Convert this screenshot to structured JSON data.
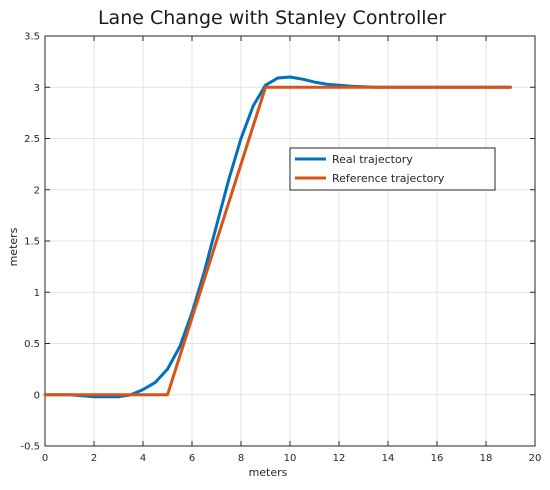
{
  "chart_data": {
    "type": "line",
    "title": "Lane Change with Stanley Controller",
    "xlabel": "meters",
    "ylabel": "meters",
    "xlim": [
      0,
      20
    ],
    "ylim": [
      -0.5,
      3.5
    ],
    "xticks": [
      0,
      2,
      4,
      6,
      8,
      10,
      12,
      14,
      16,
      18,
      20
    ],
    "xtick_labels": [
      "0",
      "2",
      "4",
      "6",
      "8",
      "10",
      "12",
      "14",
      "16",
      "18",
      "20"
    ],
    "yticks": [
      -0.5,
      0,
      0.5,
      1,
      1.5,
      2,
      2.5,
      3,
      3.5
    ],
    "ytick_labels": [
      "-0.5",
      "0",
      "0.5",
      "1",
      "1.5",
      "2",
      "2.5",
      "3",
      "3.5"
    ],
    "grid": true,
    "legend_position": "upper-right",
    "series": [
      {
        "name": "Real trajectory",
        "color": "#0072BD",
        "points": [
          [
            0,
            0
          ],
          [
            1,
            0
          ],
          [
            1.5,
            -0.01
          ],
          [
            2,
            -0.02
          ],
          [
            2.5,
            -0.02
          ],
          [
            3,
            -0.02
          ],
          [
            3.5,
            0.0
          ],
          [
            4,
            0.05
          ],
          [
            4.5,
            0.12
          ],
          [
            5,
            0.25
          ],
          [
            5.5,
            0.47
          ],
          [
            6,
            0.8
          ],
          [
            6.5,
            1.2
          ],
          [
            7,
            1.65
          ],
          [
            7.5,
            2.1
          ],
          [
            8,
            2.5
          ],
          [
            8.5,
            2.82
          ],
          [
            9,
            3.02
          ],
          [
            9.5,
            3.09
          ],
          [
            10,
            3.1
          ],
          [
            10.5,
            3.08
          ],
          [
            11,
            3.05
          ],
          [
            11.5,
            3.03
          ],
          [
            12,
            3.02
          ],
          [
            12.5,
            3.01
          ],
          [
            13,
            3.005
          ],
          [
            13.5,
            3.0
          ],
          [
            19,
            3.0
          ]
        ]
      },
      {
        "name": "Reference trajectory",
        "color": "#D95319",
        "points": [
          [
            0,
            0
          ],
          [
            5,
            0
          ],
          [
            9,
            3
          ],
          [
            19,
            3
          ]
        ]
      }
    ]
  }
}
